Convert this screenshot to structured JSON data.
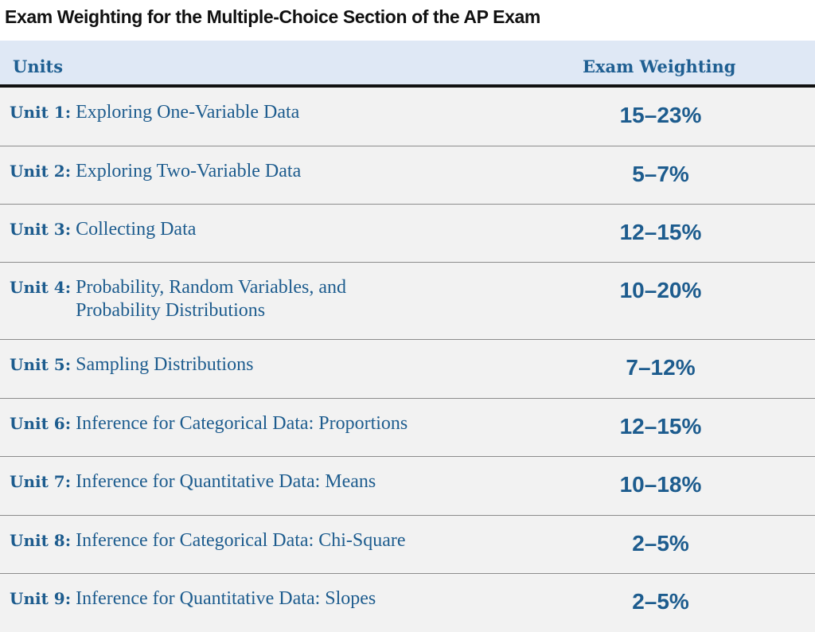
{
  "title": "Exam Weighting for the Multiple-Choice Section of the AP Exam",
  "table": {
    "headers": {
      "units": "Units",
      "weighting": "Exam Weighting"
    },
    "rows": [
      {
        "unit_label": "Unit 1:",
        "unit_name": "Exploring One-Variable Data",
        "weighting": "15–23%"
      },
      {
        "unit_label": "Unit 2:",
        "unit_name": "Exploring Two-Variable Data",
        "weighting": "5–7%"
      },
      {
        "unit_label": "Unit 3:",
        "unit_name": "Collecting Data",
        "weighting": "12–15%"
      },
      {
        "unit_label": "Unit 4:",
        "unit_name": "Probability, Random Variables, and Probability Distributions",
        "weighting": "10–20%"
      },
      {
        "unit_label": "Unit 5:",
        "unit_name": "Sampling Distributions",
        "weighting": "7–12%"
      },
      {
        "unit_label": "Unit 6:",
        "unit_name": "Inference for Categorical Data: Proportions",
        "weighting": "12–15%"
      },
      {
        "unit_label": "Unit 7:",
        "unit_name": "Inference for Quantitative Data: Means",
        "weighting": "10–18%"
      },
      {
        "unit_label": "Unit 8:",
        "unit_name": "Inference for Categorical Data: Chi-Square",
        "weighting": "2–5%"
      },
      {
        "unit_label": "Unit 9:",
        "unit_name": "Inference for Quantitative Data: Slopes",
        "weighting": "2–5%"
      }
    ]
  }
}
